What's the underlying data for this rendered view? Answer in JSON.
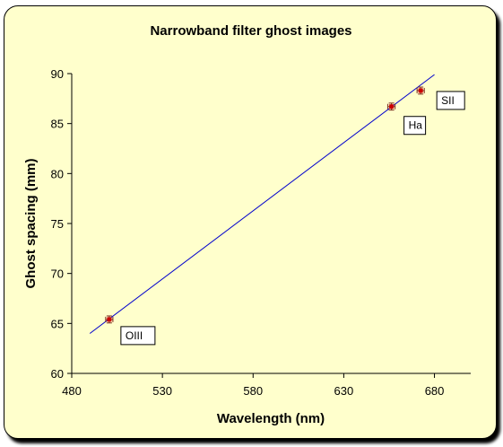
{
  "chart_data": {
    "type": "scatter",
    "title": "Narrowband filter ghost images",
    "xlabel": "Wavelength (nm)",
    "ylabel": "Ghost spacing (mm)",
    "xlim": [
      480,
      700
    ],
    "ylim": [
      60,
      90
    ],
    "xticks": [
      480,
      530,
      580,
      630,
      680
    ],
    "yticks": [
      60,
      65,
      70,
      75,
      80,
      85,
      90
    ],
    "grid": false,
    "legend": "none",
    "points": [
      {
        "label": "OIII",
        "x": 500.7,
        "y": 65.4,
        "yerr": 0.35,
        "xerr": 2
      },
      {
        "label": "Ha",
        "x": 656.3,
        "y": 86.7,
        "yerr": 0.35,
        "xerr": 2
      },
      {
        "label": "SII",
        "x": 672.4,
        "y": 88.3,
        "yerr": 0.35,
        "xerr": 2
      }
    ],
    "trendline": {
      "x": [
        490,
        680
      ],
      "y": [
        64.0,
        89.9
      ]
    },
    "colors": {
      "background": "#ffffcc",
      "marker": "#cc0000",
      "errorbar": "#7a2a1a",
      "trendline": "#0000cc",
      "axis": "#000000"
    }
  }
}
